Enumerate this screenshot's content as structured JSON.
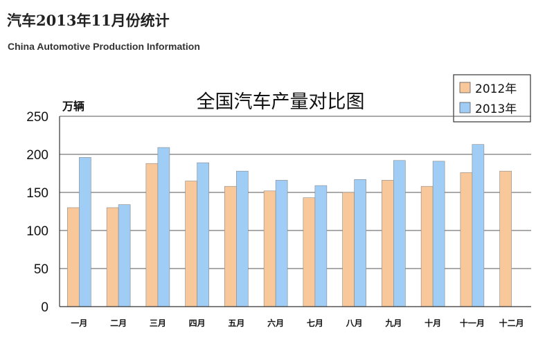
{
  "header": {
    "title": "汽车2013年11月份统计",
    "subtitle": "China Automotive Production Information"
  },
  "chart_data": {
    "type": "bar",
    "title": "全国汽车产量对比图",
    "ylabel": "万辆",
    "xlabel": "",
    "ylim": [
      0,
      250
    ],
    "yticks": [
      0,
      50,
      100,
      150,
      200,
      250
    ],
    "grid": true,
    "legend_position": "top-right",
    "categories": [
      "一月",
      "二月",
      "三月",
      "四月",
      "五月",
      "六月",
      "七月",
      "八月",
      "九月",
      "十月",
      "十一月",
      "十二月"
    ],
    "series": [
      {
        "name": "2012年",
        "color": "#f8c79a",
        "values": [
          130,
          130,
          188,
          165,
          158,
          152,
          143,
          150,
          166,
          158,
          176,
          178
        ]
      },
      {
        "name": "2013年",
        "color": "#9fcdf5",
        "values": [
          196,
          134,
          209,
          189,
          178,
          166,
          159,
          167,
          192,
          191,
          213,
          null
        ]
      }
    ]
  }
}
